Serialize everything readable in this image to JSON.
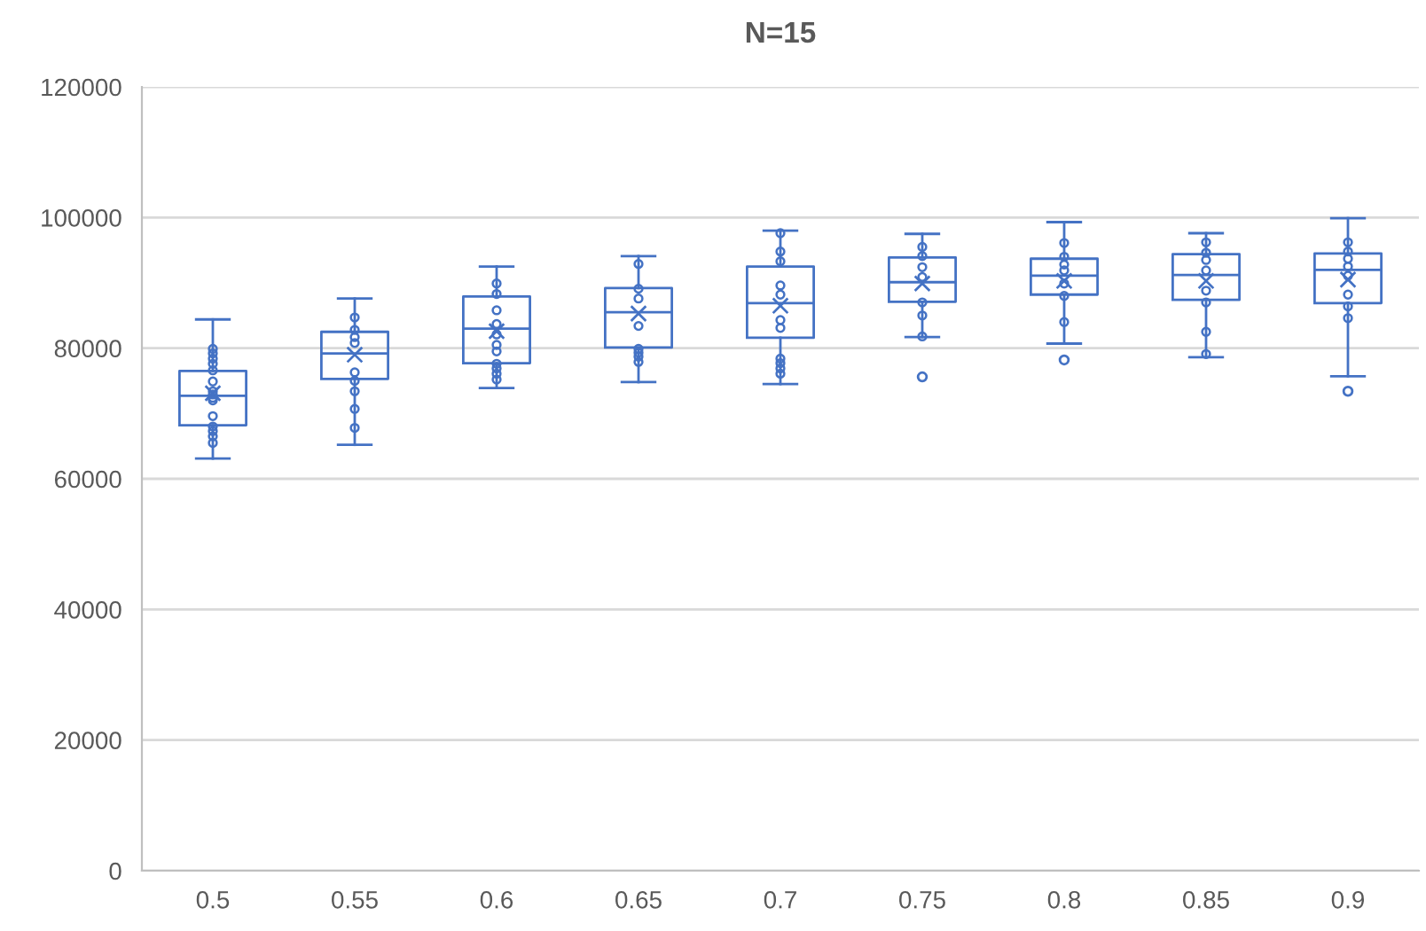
{
  "chart_data": {
    "type": "box",
    "title": "N=15",
    "categories": [
      "0.5",
      "0.55",
      "0.6",
      "0.65",
      "0.7",
      "0.75",
      "0.8",
      "0.85",
      "0.9"
    ],
    "ylim": [
      0,
      120000
    ],
    "yticks": [
      0,
      20000,
      40000,
      60000,
      80000,
      100000,
      120000
    ],
    "grid": "y",
    "legend": false,
    "series": [
      {
        "color": "#4472c4",
        "boxes": [
          {
            "low": 63100,
            "q1": 68200,
            "median": 72700,
            "q3": 76500,
            "high": 84400,
            "mean": 73100
          },
          {
            "low": 65200,
            "q1": 75300,
            "median": 79200,
            "q3": 82500,
            "high": 87600,
            "mean": 79000
          },
          {
            "low": 73900,
            "q1": 77700,
            "median": 83000,
            "q3": 87900,
            "high": 92500,
            "mean": 82600
          },
          {
            "low": 74800,
            "q1": 80100,
            "median": 85500,
            "q3": 89200,
            "high": 94100,
            "mean": 85300
          },
          {
            "low": 74500,
            "q1": 81600,
            "median": 86900,
            "q3": 92500,
            "high": 98000,
            "mean": 86500
          },
          {
            "low": 81700,
            "q1": 87100,
            "median": 90100,
            "q3": 93900,
            "high": 97500,
            "mean": 89900,
            "outliers": [
              75600
            ]
          },
          {
            "low": 80700,
            "q1": 88200,
            "median": 91100,
            "q3": 93700,
            "high": 99300,
            "mean": 90300,
            "outliers": [
              78200
            ]
          },
          {
            "low": 78600,
            "q1": 87400,
            "median": 91200,
            "q3": 94400,
            "high": 97600,
            "mean": 90300
          },
          {
            "low": 75700,
            "q1": 86900,
            "median": 92000,
            "q3": 94500,
            "high": 99900,
            "mean": 90500,
            "outliers": [
              73400
            ]
          }
        ]
      },
      {
        "type": "scatter",
        "color": "#4472c4",
        "marker": "circle",
        "x": [
          "0.5",
          "0.5",
          "0.5",
          "0.5",
          "0.5",
          "0.5",
          "0.5",
          "0.5",
          "0.5",
          "0.5",
          "0.5",
          "0.5",
          "0.5",
          "0.5",
          "0.5",
          "0.55",
          "0.55",
          "0.55",
          "0.55",
          "0.55",
          "0.55",
          "0.55",
          "0.55",
          "0.55",
          "0.6",
          "0.6",
          "0.6",
          "0.6",
          "0.6",
          "0.6",
          "0.6",
          "0.6",
          "0.6",
          "0.6",
          "0.6",
          "0.65",
          "0.65",
          "0.65",
          "0.65",
          "0.65",
          "0.65",
          "0.65",
          "0.65",
          "0.7",
          "0.7",
          "0.7",
          "0.7",
          "0.7",
          "0.7",
          "0.7",
          "0.7",
          "0.7",
          "0.7",
          "0.7",
          "0.75",
          "0.75",
          "0.75",
          "0.75",
          "0.75",
          "0.75",
          "0.75",
          "0.8",
          "0.8",
          "0.8",
          "0.8",
          "0.8",
          "0.8",
          "0.8",
          "0.85",
          "0.85",
          "0.85",
          "0.85",
          "0.85",
          "0.85",
          "0.85",
          "0.85",
          "0.9",
          "0.9",
          "0.9",
          "0.9",
          "0.9",
          "0.9",
          "0.9",
          "0.9"
        ],
        "values": [
          79900,
          79200,
          78400,
          77600,
          76600,
          74900,
          73400,
          72900,
          72400,
          72000,
          69600,
          68000,
          67300,
          66500,
          65500,
          84700,
          82800,
          81700,
          80800,
          76300,
          75000,
          73400,
          70700,
          67800,
          89900,
          88300,
          85800,
          83700,
          82100,
          80500,
          79500,
          77600,
          76900,
          76100,
          75200,
          92900,
          89100,
          87600,
          83400,
          79900,
          79300,
          78700,
          77900,
          97600,
          94800,
          93300,
          89600,
          88200,
          84300,
          83100,
          78400,
          77700,
          76900,
          76100,
          95500,
          94100,
          92400,
          90900,
          87000,
          85000,
          81800,
          96100,
          94000,
          92800,
          91900,
          89900,
          88000,
          84000,
          96200,
          94600,
          93500,
          91900,
          88800,
          87000,
          82500,
          79100,
          96200,
          94800,
          93700,
          92500,
          91100,
          88200,
          86400,
          84600
        ]
      }
    ]
  }
}
